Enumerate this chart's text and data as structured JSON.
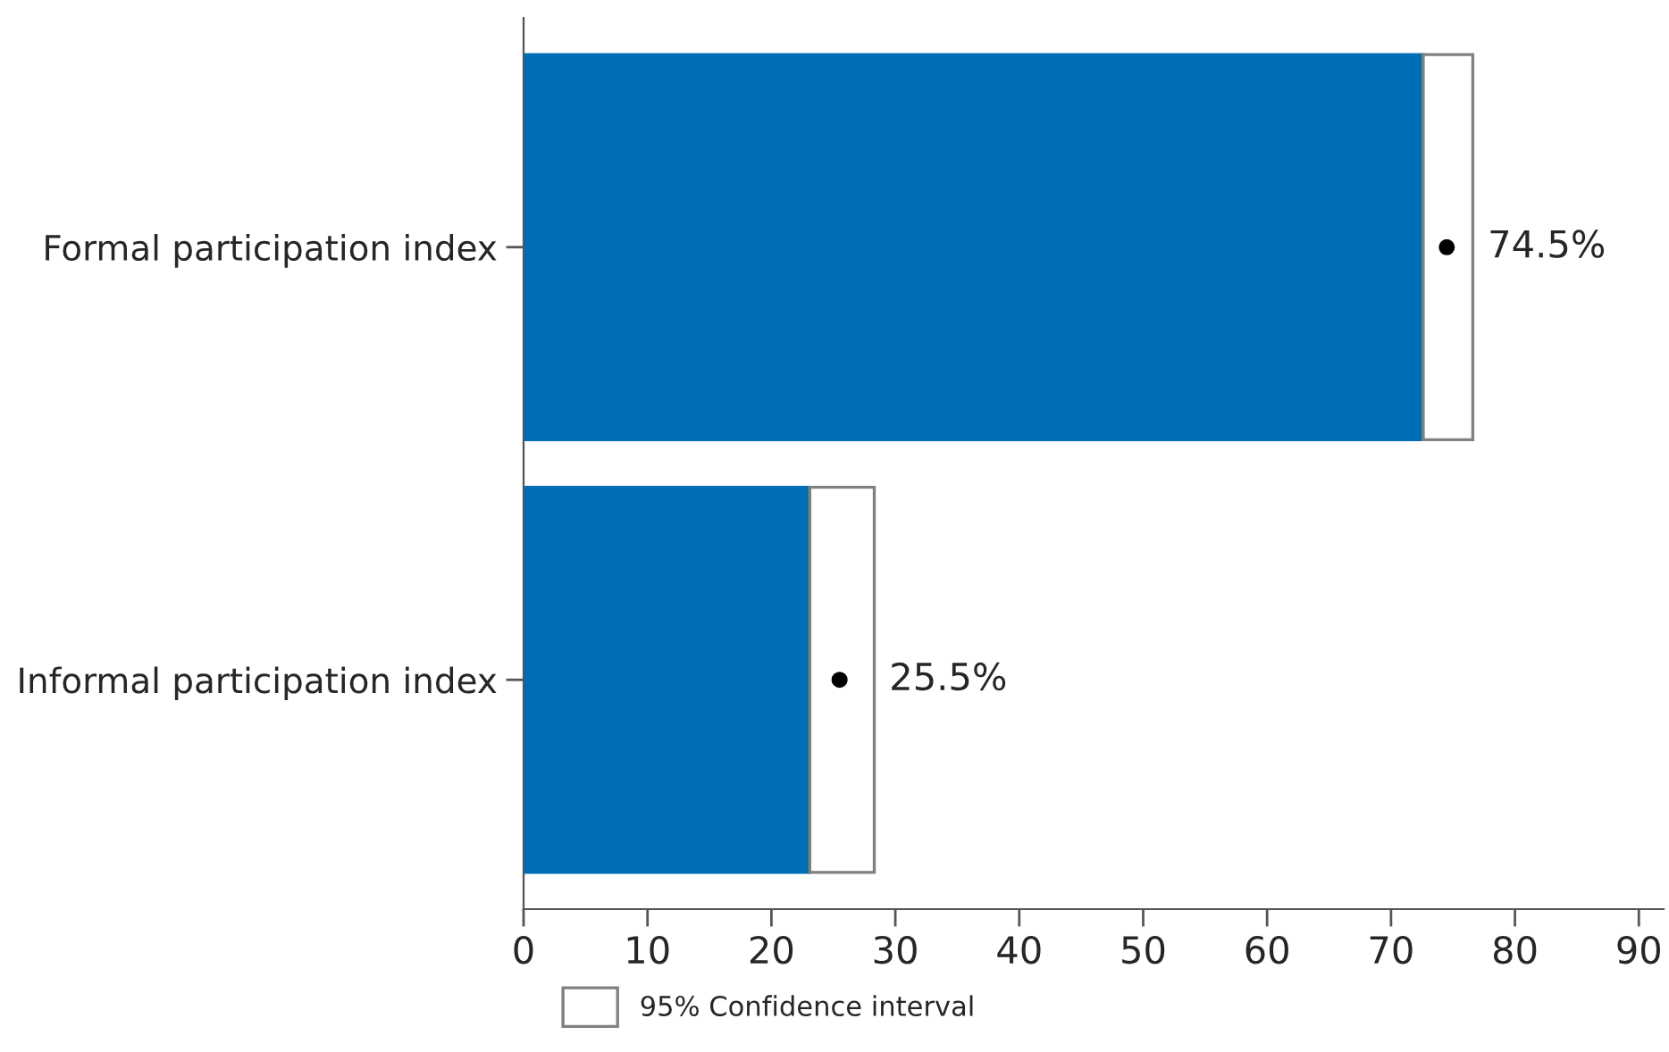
{
  "chart_data": {
    "type": "bar",
    "orientation": "horizontal",
    "stacked": true,
    "categories": [
      "Formal participation index",
      "Informal participation index"
    ],
    "series": [
      {
        "color": "#006eb6",
        "values": [
          72.6,
          23.1
        ]
      },
      {
        "name": "95% Confidence interval",
        "color": "#ffffff",
        "values": [
          4.0,
          5.2
        ]
      },
      {
        "type": "scatter",
        "color": "#000000",
        "values": [
          74.5,
          25.5
        ],
        "value_labels": [
          "74.5%",
          "25.5%"
        ]
      }
    ],
    "xlim": [
      0,
      92
    ],
    "xticks": [
      0,
      10,
      20,
      30,
      40,
      50,
      60,
      70,
      80,
      90
    ],
    "grid": false,
    "legend": "bottom",
    "marker": "circle"
  }
}
